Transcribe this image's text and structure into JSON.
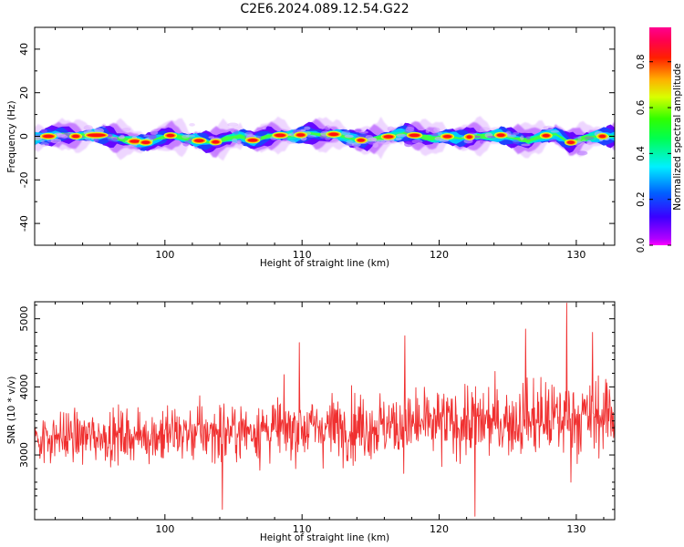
{
  "page": {
    "title": "C2E6.2024.089.12.54.G22"
  },
  "chart_data": [
    {
      "type": "heatmap",
      "title": "C2E6.2024.089.12.54.G22",
      "xlabel": "Height of straight line (km)",
      "ylabel": "Frequency (Hz)",
      "xlim": [
        90.5,
        132.8
      ],
      "ylim": [
        -50,
        50
      ],
      "x_ticks": [
        100,
        110,
        120,
        130
      ],
      "y_ticks": [
        -40,
        -20,
        0,
        20,
        40
      ],
      "colorbar": {
        "label": "Normalized spectral amplitude",
        "range": [
          0.0,
          0.95
        ],
        "ticks": [
          "0.0",
          "0.2",
          "0.4",
          "0.6",
          "0.8"
        ],
        "colormap": "gist_rainbow (purple→blue→cyan→green→yellow→red→magenta)"
      },
      "band_center": [
        [
          90.5,
          -1
        ],
        [
          91.5,
          0
        ],
        [
          92.5,
          1
        ],
        [
          93.5,
          0
        ],
        [
          94.5,
          0.5
        ],
        [
          95.5,
          0.5
        ],
        [
          96.5,
          -1
        ],
        [
          97.5,
          -2
        ],
        [
          98.5,
          -3
        ],
        [
          99.5,
          -1
        ],
        [
          100.5,
          0.5
        ],
        [
          101.5,
          -1
        ],
        [
          102.5,
          -2
        ],
        [
          103.5,
          -3
        ],
        [
          104.5,
          -1
        ],
        [
          105.5,
          0
        ],
        [
          106.5,
          -2
        ],
        [
          107.5,
          0
        ],
        [
          108.5,
          0.5
        ],
        [
          109.5,
          0
        ],
        [
          110.5,
          1.5
        ],
        [
          111.5,
          0.5
        ],
        [
          112.5,
          1
        ],
        [
          113.5,
          -1
        ],
        [
          114.5,
          -2
        ],
        [
          115.5,
          -1
        ],
        [
          116.5,
          0
        ],
        [
          117.5,
          1.5
        ],
        [
          118.5,
          0
        ],
        [
          119.5,
          -1
        ],
        [
          120.5,
          0
        ],
        [
          121.5,
          -1
        ],
        [
          122.5,
          0
        ],
        [
          123.5,
          0
        ],
        [
          124.5,
          0.5
        ],
        [
          125.5,
          -1
        ],
        [
          126.5,
          -2
        ],
        [
          127.5,
          0
        ],
        [
          128.5,
          1
        ],
        [
          129.5,
          -3
        ],
        [
          130.5,
          -1
        ],
        [
          131.5,
          0
        ],
        [
          132.5,
          0
        ]
      ],
      "band_halfwidth_hz": 3.5,
      "hotspots_x": [
        91.5,
        93.5,
        95,
        97.8,
        98.6,
        100.4,
        102.5,
        103.7,
        106.4,
        108.4,
        109.9,
        112.3,
        114.3,
        116.3,
        118.2,
        120.6,
        122.2,
        124.5,
        127.8,
        129.6,
        131.9
      ]
    },
    {
      "type": "line",
      "xlabel": "Height of straight line (km)",
      "ylabel": "SNR (10 * v/v)",
      "xlim": [
        90.5,
        132.8
      ],
      "ylim": [
        2050,
        5250
      ],
      "x_ticks": [
        100,
        110,
        120,
        130
      ],
      "y_ticks": [
        3000,
        4000,
        5000
      ],
      "color": "#f03030",
      "trend": [
        [
          90.5,
          3250
        ],
        [
          100,
          3300
        ],
        [
          110,
          3400
        ],
        [
          120,
          3450
        ],
        [
          130,
          3550
        ],
        [
          132.8,
          3600
        ]
      ],
      "noise_sd": 330,
      "peaks": [
        [
          104.2,
          2200
        ],
        [
          109.8,
          4650
        ],
        [
          117.5,
          4750
        ],
        [
          122.6,
          2100
        ],
        [
          126.3,
          4850
        ],
        [
          129.3,
          5230
        ],
        [
          129.6,
          2600
        ],
        [
          131.2,
          4800
        ]
      ]
    }
  ]
}
